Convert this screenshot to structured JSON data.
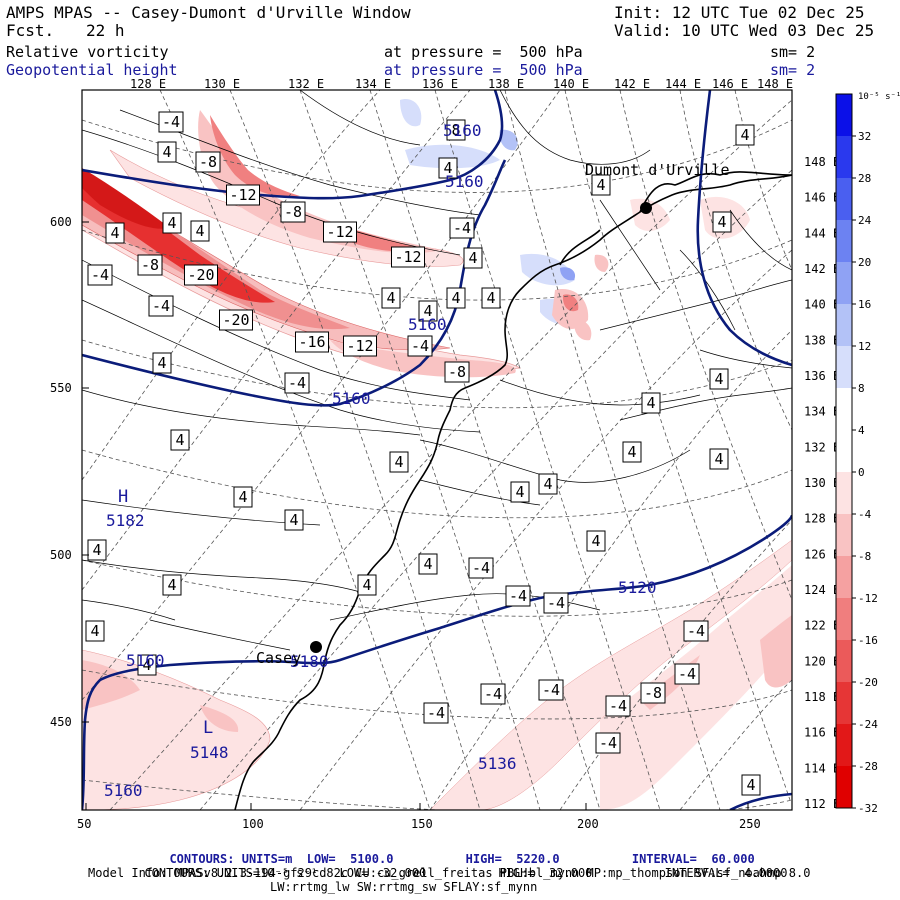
{
  "header": {
    "title": "AMPS MPAS -- Casey-Dumont d'Urville Window",
    "fcst_label": "Fcst.",
    "fcst_value": "22 h",
    "init": "Init: 12 UTC Tue 02 Dec 25",
    "valid": "Valid: 10 UTC Wed 03 Dec 25",
    "field1_name": "Relative vorticity",
    "field1_pressure": "at pressure =  500 hPa",
    "field1_sm": "sm= 2",
    "field2_name": "Geopotential height",
    "field2_pressure": "at pressure =  500 hPa",
    "field2_sm": "sm= 2"
  },
  "lon_labels": [
    "128 E",
    "130 E",
    "132 E",
    "134 E",
    "136 E",
    "138 E",
    "140 E",
    "142 E",
    "144 E",
    "146 E",
    "148 E"
  ],
  "lat_labels": [
    "148 E",
    "146 E",
    "144 E",
    "142 E",
    "140 E",
    "138 E",
    "136 E",
    "134 E",
    "132 E",
    "130 E",
    "128 E",
    "126 E",
    "124 E",
    "122 E",
    "120 E",
    "118 E",
    "116 E",
    "114 E",
    "112 E"
  ],
  "x_ticks": [
    "50",
    "100",
    "150",
    "200",
    "250"
  ],
  "y_ticks": [
    "600",
    "550",
    "500",
    "450"
  ],
  "colorbar": {
    "title": "10⁻⁵ s⁻¹",
    "labels": [
      "32",
      "28",
      "24",
      "20",
      "16",
      "12",
      "8",
      "4",
      "0",
      "-4",
      "-8",
      "-12",
      "-16",
      "-20",
      "-24",
      "-28",
      "-32"
    ],
    "colors": [
      "#0b10e8",
      "#2a39ee",
      "#4a5ff0",
      "#6c82f2",
      "#8fa2f4",
      "#b3c2f7",
      "#d6defb",
      "#ffffff",
      "#ffffff",
      "#fde3e3",
      "#f9c3c3",
      "#f5a1a1",
      "#f07e7e",
      "#eb5a5a",
      "#e63636",
      "#e21818",
      "#e00000"
    ]
  },
  "stations": [
    {
      "name": "Dumont d'Urville"
    },
    {
      "name": "Casey"
    }
  ],
  "height_labels": [
    "5160",
    "5160",
    "5160",
    "5182",
    "5160",
    "5120",
    "5160",
    "5148",
    "5136",
    "5160",
    "5180"
  ],
  "pressure_centers": [
    "H",
    "L"
  ],
  "vort_labels": [
    "-4",
    "-8",
    "-12",
    "-8",
    "-12",
    "-4",
    "-8",
    "-12",
    "-16",
    "-20",
    "-20",
    "-4",
    "-4",
    "-12",
    "-4",
    "-4",
    "-8",
    "-4",
    "-4",
    "-4",
    "-4",
    "-4",
    "-4",
    "-8",
    "-4",
    "-4",
    "-4",
    "-4",
    "4",
    "4",
    "4",
    "4",
    "4",
    "4",
    "4",
    "4",
    "4",
    "4",
    "4",
    "4",
    "4",
    "4",
    "4",
    "4",
    "4",
    "4",
    "4",
    "4",
    "4",
    "4",
    "4",
    "4",
    "4",
    "4",
    "4",
    "4",
    "4",
    "4",
    "4",
    "4",
    "8"
  ],
  "footer": {
    "line1_label": "CONTOURS:",
    "line1": "UNITS=m  LOW=  5100.0          HIGH=  5220.0          INTERVAL=  60.000",
    "line2_label": "CONTOURS:",
    "line2": "UNITS=10⁻⁵ s⁻¹   LOW= -32.000          HIGH=  32.000          INTERVAL=  4.0000",
    "line3": "Model Info: MPASv8.2.3-194-gf29cd82c CU:cu_grell_freitas PBL:bl_mynn MP:mp_thompson SF:sf_noahmp 8.0",
    "line4": "LW:rrtmg_lw SW:rrtmg_sw SFLAY:sf_mynn"
  }
}
